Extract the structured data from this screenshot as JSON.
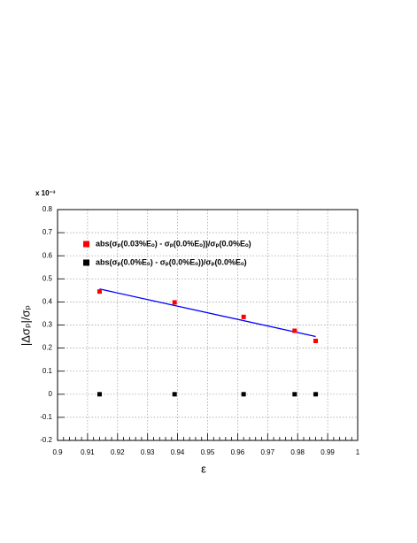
{
  "chart_data": {
    "type": "scatter",
    "x_label": "ε",
    "y_label": "|Δσₚ|/σₚ",
    "y_multiplier": "x 10⁻³",
    "xlim": [
      0.9,
      1
    ],
    "xticks": [
      0.9,
      0.91,
      0.92,
      0.93,
      0.94,
      0.95,
      0.96,
      0.97,
      0.98,
      0.99,
      1
    ],
    "ylim": [
      -0.2,
      0.8
    ],
    "yticks": [
      -0.2,
      -0.1,
      0,
      0.1,
      0.2,
      0.3,
      0.4,
      0.5,
      0.6,
      0.7,
      0.8
    ],
    "grid": true,
    "legend": "top-left",
    "series": [
      {
        "name": "abs(σₚ(0.03%Eₒ) - σₚ(0.0%Eₒ))/σₚ(0.0%Eₒ)",
        "color": "#ff0000",
        "x": [
          0.914,
          0.939,
          0.962,
          0.979,
          0.986
        ],
        "values": [
          0.445,
          0.398,
          0.335,
          0.275,
          0.231
        ]
      },
      {
        "name": "abs(σₚ(0.0%Eₒ) - σₚ(0.0%Eₒ))/σₚ(0.0%Eₒ)",
        "color": "#000000",
        "x": [
          0.914,
          0.939,
          0.962,
          0.979,
          0.986
        ],
        "values": [
          0,
          0,
          0,
          0,
          0
        ]
      }
    ],
    "fit": {
      "color": "#0000ff",
      "x": [
        0.914,
        0.986
      ],
      "values": [
        0.456,
        0.25
      ]
    }
  }
}
